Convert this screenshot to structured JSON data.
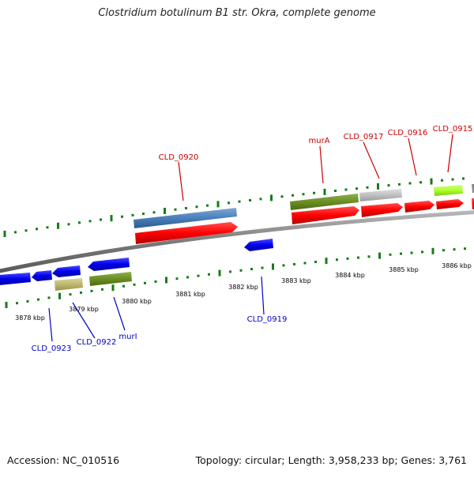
{
  "title": "Clostridium botulinum B1 str. Okra, complete genome",
  "footer": {
    "accession": "Accession: NC_010516",
    "summary": "Topology: circular; Length: 3,958,233 bp; Genes: 3,761"
  },
  "colors": {
    "forward_cds": "#ff0000",
    "reverse_cds": "#0000ee",
    "gene_label_forward": "#cc0000",
    "gene_label_reverse": "#0000cc",
    "backbone": "#808080",
    "tick": "#1a7a1a"
  },
  "tick_labels": [
    "3878 kbp",
    "3879 kbp",
    "3880 kbp",
    "3881 kbp",
    "3882 kbp",
    "3883 kbp",
    "3884 kbp",
    "3885 kbp",
    "3886 kbp"
  ],
  "gene_labels": {
    "forward": [
      "CLD_0920",
      "murA",
      "CLD_0917",
      "CLD_0916",
      "CLD_0915"
    ],
    "reverse": [
      "CLD_0923",
      "CLD_0922",
      "murI",
      "CLD_0919"
    ]
  }
}
